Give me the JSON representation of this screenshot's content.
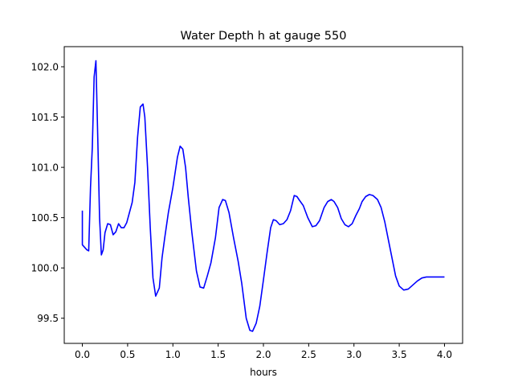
{
  "chart_data": {
    "type": "line",
    "title": "Water Depth h at gauge 550",
    "xlabel": "hours",
    "ylabel": "",
    "xlim": [
      -0.2,
      4.2
    ],
    "ylim": [
      99.25,
      102.2
    ],
    "xticks": [
      0.0,
      0.5,
      1.0,
      1.5,
      2.0,
      2.5,
      3.0,
      3.5,
      4.0
    ],
    "xtick_labels": [
      "0.0",
      "0.5",
      "1.0",
      "1.5",
      "2.0",
      "2.5",
      "3.0",
      "3.5",
      "4.0"
    ],
    "yticks": [
      99.5,
      100.0,
      100.5,
      101.0,
      101.5,
      102.0
    ],
    "ytick_labels": [
      "99.5",
      "100.0",
      "100.5",
      "101.0",
      "101.5",
      "102.0"
    ],
    "grid": false,
    "legend": "none",
    "series": [
      {
        "color": "#0000ff",
        "x": [
          0.0,
          0.0,
          0.02,
          0.05,
          0.07,
          0.09,
          0.11,
          0.13,
          0.15,
          0.17,
          0.19,
          0.21,
          0.23,
          0.25,
          0.28,
          0.31,
          0.34,
          0.37,
          0.4,
          0.43,
          0.46,
          0.49,
          0.52,
          0.55,
          0.58,
          0.61,
          0.64,
          0.67,
          0.69,
          0.72,
          0.75,
          0.78,
          0.81,
          0.85,
          0.88,
          0.91,
          0.95,
          1.0,
          1.05,
          1.08,
          1.11,
          1.14,
          1.17,
          1.21,
          1.26,
          1.3,
          1.34,
          1.38,
          1.42,
          1.47,
          1.51,
          1.55,
          1.58,
          1.62,
          1.67,
          1.72,
          1.76,
          1.81,
          1.85,
          1.88,
          1.92,
          1.96,
          2.0,
          2.04,
          2.08,
          2.11,
          2.14,
          2.18,
          2.22,
          2.26,
          2.3,
          2.34,
          2.37,
          2.4,
          2.44,
          2.49,
          2.54,
          2.58,
          2.62,
          2.67,
          2.71,
          2.75,
          2.78,
          2.82,
          2.86,
          2.9,
          2.94,
          2.98,
          3.02,
          3.06,
          3.09,
          3.13,
          3.17,
          3.21,
          3.26,
          3.3,
          3.34,
          3.38,
          3.42,
          3.46,
          3.5,
          3.55,
          3.6,
          3.65,
          3.7,
          3.75,
          3.8,
          3.85,
          3.9,
          3.95,
          4.0
        ],
        "y": [
          100.57,
          100.23,
          100.21,
          100.18,
          100.17,
          100.8,
          101.2,
          101.9,
          102.06,
          101.3,
          100.5,
          100.13,
          100.18,
          100.35,
          100.44,
          100.43,
          100.33,
          100.36,
          100.44,
          100.4,
          100.4,
          100.45,
          100.55,
          100.65,
          100.85,
          101.3,
          101.6,
          101.63,
          101.5,
          101.0,
          100.4,
          99.9,
          99.72,
          99.8,
          100.1,
          100.3,
          100.55,
          100.8,
          101.1,
          101.21,
          101.18,
          101.0,
          100.7,
          100.35,
          99.97,
          99.81,
          99.8,
          99.92,
          100.05,
          100.3,
          100.6,
          100.68,
          100.67,
          100.55,
          100.3,
          100.07,
          99.85,
          99.5,
          99.38,
          99.37,
          99.45,
          99.62,
          99.88,
          100.15,
          100.4,
          100.48,
          100.47,
          100.43,
          100.44,
          100.48,
          100.57,
          100.72,
          100.71,
          100.67,
          100.62,
          100.5,
          100.41,
          100.42,
          100.47,
          100.6,
          100.66,
          100.68,
          100.66,
          100.6,
          100.49,
          100.43,
          100.41,
          100.44,
          100.52,
          100.59,
          100.66,
          100.71,
          100.73,
          100.72,
          100.68,
          100.6,
          100.46,
          100.28,
          100.1,
          99.92,
          99.82,
          99.78,
          99.79,
          99.83,
          99.87,
          99.9,
          99.91,
          99.91,
          99.91,
          99.91,
          99.91
        ]
      }
    ]
  }
}
